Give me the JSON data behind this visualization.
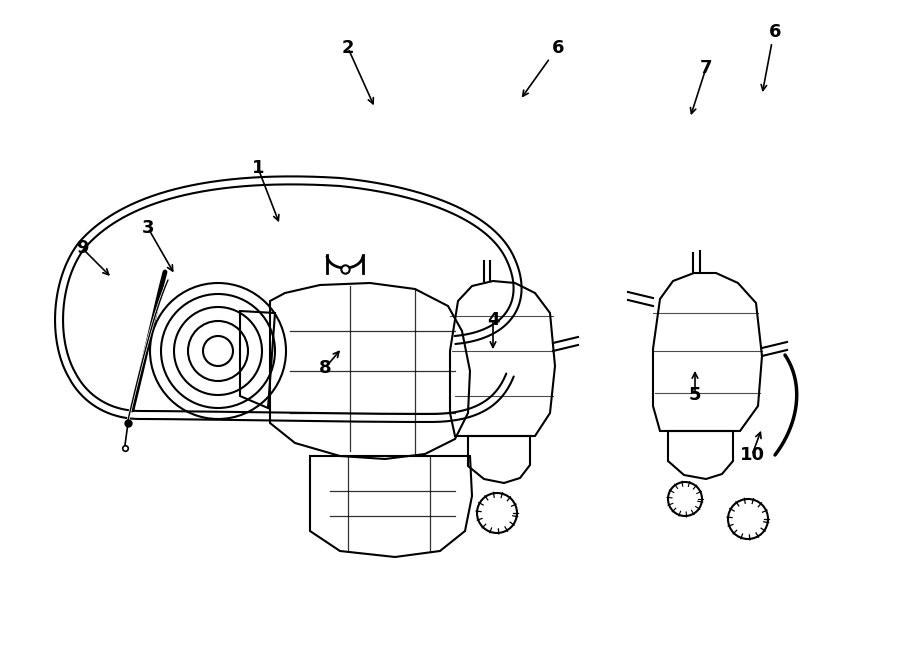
{
  "bg_color": "#ffffff",
  "line_color": "#000000",
  "label_color": "#000000",
  "lw": 1.5,
  "lw2": 2.0
}
